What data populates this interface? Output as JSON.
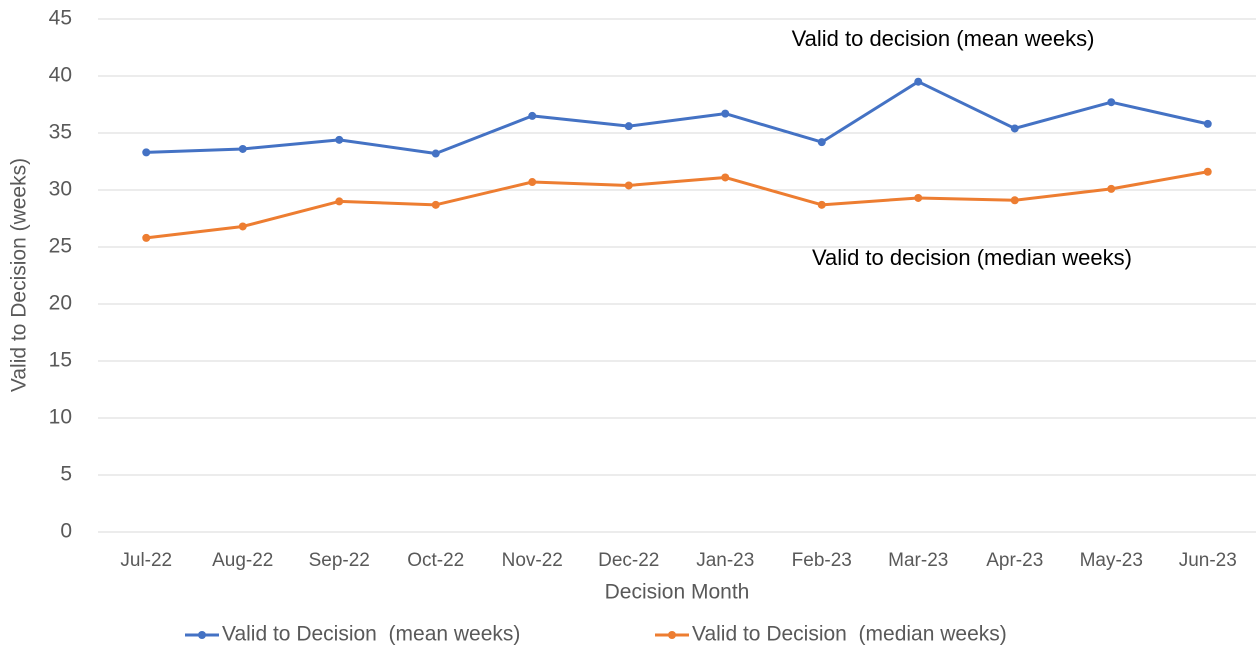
{
  "chart_data": {
    "type": "line",
    "x_label": "Decision Month",
    "y_label": "Valid to Decision (weeks)",
    "categories": [
      "Jul-22",
      "Aug-22",
      "Sep-22",
      "Oct-22",
      "Nov-22",
      "Dec-22",
      "Jan-23",
      "Feb-23",
      "Mar-23",
      "Apr-23",
      "May-23",
      "Jun-23"
    ],
    "series": [
      {
        "name": "Valid to Decision  (mean weeks)",
        "color": "#4472c4",
        "values": [
          33.3,
          33.6,
          34.4,
          33.2,
          36.5,
          35.6,
          36.7,
          34.2,
          39.5,
          35.4,
          37.7,
          35.8
        ]
      },
      {
        "name": "Valid to Decision  (median weeks)",
        "color": "#ed7d31",
        "values": [
          25.8,
          26.8,
          29.0,
          28.7,
          30.7,
          30.4,
          31.1,
          28.7,
          29.3,
          29.1,
          30.1,
          31.6
        ]
      }
    ],
    "annotations": [
      "Valid to decision (mean weeks)",
      "Valid to decision (median weeks)"
    ],
    "ylim": [
      0,
      45
    ],
    "yticks": [
      0,
      5,
      10,
      15,
      20,
      25,
      30,
      35,
      40,
      45
    ],
    "grid": true,
    "legend": "bottom"
  }
}
